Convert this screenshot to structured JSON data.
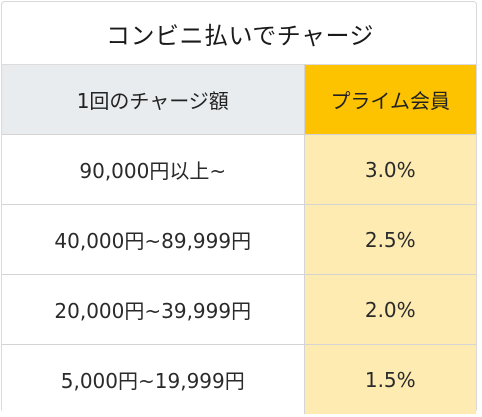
{
  "title": "コンビニ払いでチャージ",
  "header": {
    "col1": "1回のチャージ額",
    "col2": "プライム会員"
  },
  "rows": [
    {
      "amount": "90,000円以上~",
      "rate": "3.0%"
    },
    {
      "amount": "40,000円~89,999円",
      "rate": "2.5%"
    },
    {
      "amount": "20,000円~39,999円",
      "rate": "2.0%"
    },
    {
      "amount": "5,000円~19,999円",
      "rate": "1.5%"
    }
  ],
  "colors": {
    "header_left_bg": "#e9ecee",
    "header_right_bg": "#fdc300",
    "rate_cell_bg": "#fdebb2"
  }
}
